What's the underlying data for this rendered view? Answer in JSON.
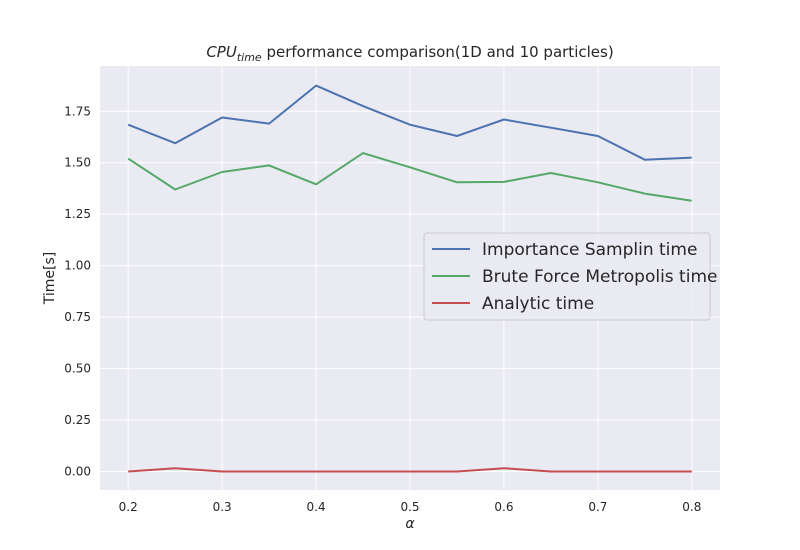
{
  "chart_data": {
    "type": "line",
    "title_main": "CPU",
    "title_sub": "time",
    "title_rest": " performance comparison(1D and 10 particles)",
    "xlabel": "α",
    "ylabel": "Time[s]",
    "xlim": [
      0.17,
      0.83
    ],
    "ylim": [
      -0.09,
      1.97
    ],
    "xticks": [
      0.2,
      0.3,
      0.4,
      0.5,
      0.6,
      0.7,
      0.8
    ],
    "xtick_labels": [
      "0.2",
      "0.3",
      "0.4",
      "0.5",
      "0.6",
      "0.7",
      "0.8"
    ],
    "yticks": [
      0.0,
      0.25,
      0.5,
      0.75,
      1.0,
      1.25,
      1.5,
      1.75
    ],
    "ytick_labels": [
      "0.00",
      "0.25",
      "0.50",
      "0.75",
      "1.00",
      "1.25",
      "1.50",
      "1.75"
    ],
    "grid": true,
    "legend_position": "center-right",
    "x": [
      0.2,
      0.25,
      0.3,
      0.35,
      0.4,
      0.45,
      0.5,
      0.55,
      0.6,
      0.65,
      0.7,
      0.75,
      0.8
    ],
    "series": [
      {
        "name": "Importance Samplin time",
        "color": "#4c72b0",
        "values": [
          1.685,
          1.595,
          1.72,
          1.69,
          1.875,
          1.775,
          1.685,
          1.63,
          1.71,
          1.67,
          1.63,
          1.515,
          1.525
        ]
      },
      {
        "name": "Brute Force Metropolis time",
        "color": "#55a868",
        "values": [
          1.52,
          1.37,
          1.455,
          1.487,
          1.395,
          1.547,
          1.478,
          1.405,
          1.407,
          1.45,
          1.405,
          1.35,
          1.315
        ]
      },
      {
        "name": "Analytic time",
        "color": "#c44e52",
        "values": [
          0.0,
          0.016,
          0.0,
          0.0,
          0.0,
          0.0,
          0.0,
          0.0,
          0.016,
          0.0,
          0.0,
          0.0,
          0.0
        ]
      }
    ]
  },
  "style": {
    "plot_bg": "#eaeaf2",
    "grid_color": "#ffffff",
    "text_color": "#262626"
  }
}
